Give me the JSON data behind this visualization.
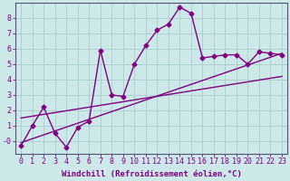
{
  "xlabel": "Windchill (Refroidissement éolien,°C)",
  "bg_color": "#cce8e8",
  "line_color": "#800080",
  "grid_color": "#aacccc",
  "xlim": [
    -0.5,
    23.5
  ],
  "ylim": [
    -0.8,
    9.0
  ],
  "xticks": [
    0,
    1,
    2,
    3,
    4,
    5,
    6,
    7,
    8,
    9,
    10,
    11,
    12,
    13,
    14,
    15,
    16,
    17,
    18,
    19,
    20,
    21,
    22,
    23
  ],
  "yticks": [
    0,
    1,
    2,
    3,
    4,
    5,
    6,
    7,
    8
  ],
  "ytick_labels": [
    "-0",
    "1",
    "2",
    "3",
    "4",
    "5",
    "6",
    "7",
    "8"
  ],
  "line1_x": [
    0,
    1,
    2,
    3,
    4,
    5,
    6,
    7,
    8,
    9,
    10,
    11,
    12,
    13,
    14,
    15,
    16,
    17,
    18,
    19,
    20,
    21,
    22,
    23
  ],
  "line1_y": [
    -0.3,
    1.0,
    2.2,
    0.5,
    -0.4,
    0.9,
    1.3,
    5.9,
    3.0,
    2.9,
    5.0,
    6.2,
    7.2,
    7.6,
    8.7,
    8.3,
    5.4,
    5.5,
    5.6,
    5.6,
    5.0,
    5.8,
    5.7,
    5.6
  ],
  "line2_x": [
    0,
    23
  ],
  "line2_y": [
    -0.1,
    5.7
  ],
  "line3_x": [
    0,
    23
  ],
  "line3_y": [
    1.5,
    4.2
  ],
  "marker": "D",
  "markersize": 2.5,
  "linewidth": 1.0,
  "tick_fontsize": 6,
  "label_fontsize": 6.5,
  "tick_color": "#800080",
  "axis_color": "#800080",
  "spine_color": "#555577"
}
